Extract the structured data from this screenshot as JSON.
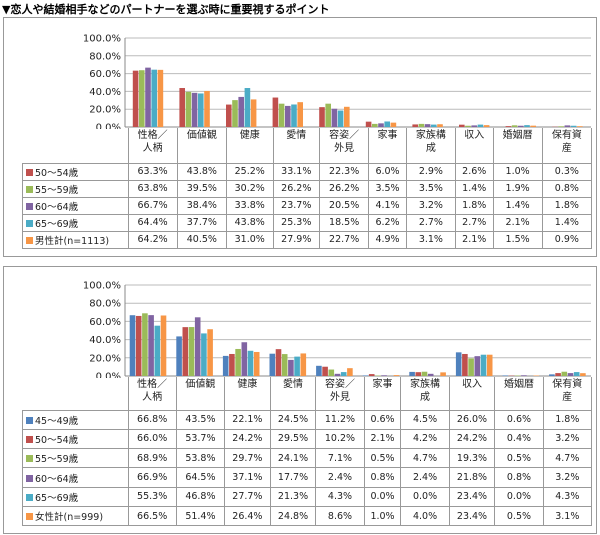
{
  "title": "▼恋人や結婚相手などのパートナーを選ぶ時に重要視するポイント",
  "chart_data": [
    {
      "type": "bar",
      "title": "",
      "ylim": [
        0,
        100
      ],
      "yticks": [
        "0.0%",
        "20.0%",
        "40.0%",
        "60.0%",
        "80.0%",
        "100.0%"
      ],
      "categories": [
        "性格／人柄",
        "価値観",
        "健康",
        "愛情",
        "容姿／外見",
        "家事",
        "家族構成",
        "収入",
        "婚姻暦",
        "保有資産"
      ],
      "category_lines": [
        [
          "性格／",
          "人柄"
        ],
        [
          "価値観"
        ],
        [
          "健康"
        ],
        [
          "愛情"
        ],
        [
          "容姿／",
          "外見"
        ],
        [
          "家事"
        ],
        [
          "家族構",
          "成"
        ],
        [
          "収入"
        ],
        [
          "婚姻暦"
        ],
        [
          "保有資",
          "産"
        ]
      ],
      "series": [
        {
          "name": "50～54歳",
          "color": "#C0504D",
          "values": [
            63.3,
            43.8,
            25.2,
            33.1,
            22.3,
            6.0,
            2.9,
            2.6,
            1.0,
            0.3
          ]
        },
        {
          "name": "55～59歳",
          "color": "#9BBB59",
          "values": [
            63.8,
            39.5,
            30.2,
            26.2,
            26.2,
            3.5,
            3.5,
            1.4,
            1.9,
            0.8
          ]
        },
        {
          "name": "60～64歳",
          "color": "#8064A2",
          "values": [
            66.7,
            38.4,
            33.8,
            23.7,
            20.5,
            4.1,
            3.2,
            1.8,
            1.4,
            1.8
          ]
        },
        {
          "name": "65～69歳",
          "color": "#4BACC6",
          "values": [
            64.4,
            37.7,
            43.8,
            25.3,
            18.5,
            6.2,
            2.7,
            2.7,
            2.1,
            1.4
          ]
        },
        {
          "name": "男性計(n=1113)",
          "color": "#F79646",
          "values": [
            64.2,
            40.5,
            31.0,
            27.9,
            22.7,
            4.9,
            3.1,
            2.1,
            1.5,
            0.9
          ]
        }
      ]
    },
    {
      "type": "bar",
      "title": "",
      "ylim": [
        0,
        100
      ],
      "yticks": [
        "0.0%",
        "20.0%",
        "40.0%",
        "60.0%",
        "80.0%",
        "100.0%"
      ],
      "categories": [
        "性格／人柄",
        "価値観",
        "健康",
        "愛情",
        "容姿／外見",
        "家事",
        "家族構成",
        "収入",
        "婚姻暦",
        "保有資産"
      ],
      "category_lines": [
        [
          "性格／",
          "人柄"
        ],
        [
          "価値観"
        ],
        [
          "健康"
        ],
        [
          "愛情"
        ],
        [
          "容姿／",
          "外見"
        ],
        [
          "家事"
        ],
        [
          "家族構",
          "成"
        ],
        [
          "収入"
        ],
        [
          "婚姻暦"
        ],
        [
          "保有資",
          "産"
        ]
      ],
      "series": [
        {
          "name": "45～49歳",
          "color": "#4F81BD",
          "values": [
            66.8,
            43.5,
            22.1,
            24.5,
            11.2,
            0.6,
            4.5,
            26.0,
            0.6,
            1.8
          ]
        },
        {
          "name": "50～54歳",
          "color": "#C0504D",
          "values": [
            66.0,
            53.7,
            24.2,
            29.5,
            10.2,
            2.1,
            4.2,
            24.2,
            0.4,
            3.2
          ]
        },
        {
          "name": "55～59歳",
          "color": "#9BBB59",
          "values": [
            68.9,
            53.8,
            29.7,
            24.1,
            7.1,
            0.5,
            4.7,
            19.3,
            0.5,
            4.7
          ]
        },
        {
          "name": "60～64歳",
          "color": "#8064A2",
          "values": [
            66.9,
            64.5,
            37.1,
            17.7,
            2.4,
            0.8,
            2.4,
            21.8,
            0.8,
            3.2
          ]
        },
        {
          "name": "65～69歳",
          "color": "#4BACC6",
          "values": [
            55.3,
            46.8,
            27.7,
            21.3,
            4.3,
            0.0,
            0.0,
            23.4,
            0.0,
            4.3
          ]
        },
        {
          "name": "女性計(n=999)",
          "color": "#F79646",
          "values": [
            66.5,
            51.4,
            26.4,
            24.8,
            8.6,
            1.0,
            4.0,
            23.4,
            0.5,
            3.1
          ]
        }
      ]
    }
  ]
}
